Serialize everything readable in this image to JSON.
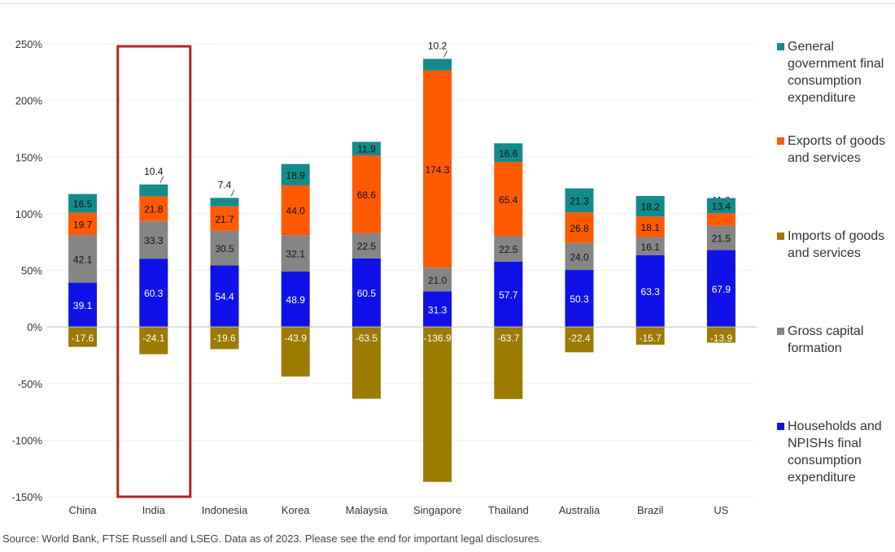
{
  "chart_data": {
    "type": "bar",
    "stacked": true,
    "categories": [
      "China",
      "India",
      "Indonesia",
      "Korea",
      "Malaysia",
      "Singapore",
      "Thailand",
      "Australia",
      "Brazil",
      "US"
    ],
    "ylim": [
      -150,
      250
    ],
    "yticks": [
      "250%",
      "200%",
      "150%",
      "100%",
      "50%",
      "0%",
      "-50%",
      "-100%",
      "-150%"
    ],
    "ytick_values": [
      250,
      200,
      150,
      100,
      50,
      0,
      -50,
      -100,
      -150
    ],
    "grid": true,
    "legend_position": "right",
    "highlight_category": "India",
    "series": [
      {
        "name": "Households and NPISHs final consumption expenditure",
        "color": "#1010e8",
        "text_color": "#ffffff",
        "values": [
          39.1,
          60.3,
          54.4,
          48.9,
          60.5,
          31.3,
          57.7,
          50.3,
          63.3,
          67.9
        ],
        "labels": [
          "39.1",
          "60.3",
          "54.4",
          "48.9",
          "60.5",
          "31.3",
          "57.7",
          "50.3",
          "63.3",
          "67.9"
        ]
      },
      {
        "name": "Gross capital formation",
        "color": "#858585",
        "text_color": "#111111",
        "values": [
          42.1,
          33.3,
          30.5,
          32.1,
          22.5,
          21.0,
          22.5,
          24.0,
          16.1,
          21.5
        ],
        "labels": [
          "42.1",
          "33.3",
          "30.5",
          "32.1",
          "22.5",
          "21.0",
          "22.5",
          "24.0",
          "16.1",
          "21.5"
        ]
      },
      {
        "name": "Exports of goods and services",
        "color": "#ff5a00",
        "text_color": "#111111",
        "values": [
          19.7,
          21.8,
          21.7,
          44.0,
          68.6,
          174.3,
          65.4,
          26.8,
          18.1,
          11.0
        ],
        "labels": [
          "19.7",
          "21.8",
          "21.7",
          "44.0",
          "68.6",
          "174.3",
          "65.4",
          "26.8",
          "18.1",
          "11.0"
        ]
      },
      {
        "name": "General government final consumption expenditure",
        "color": "#138b8b",
        "text_color": "#111111",
        "values": [
          16.5,
          10.4,
          7.4,
          18.9,
          11.9,
          10.2,
          16.6,
          21.3,
          18.2,
          13.4
        ],
        "labels": [
          "16.5",
          "10.4",
          "7.4",
          "18.9",
          "11.9",
          "10.2",
          "16.6",
          "21.3",
          "18.2",
          "13.4"
        ]
      },
      {
        "name": "Imports of goods and services",
        "color": "#9c7b00",
        "text_color": "#ffffff",
        "values": [
          -17.6,
          -24.1,
          -19.6,
          -43.9,
          -63.5,
          -136.9,
          -63.7,
          -22.4,
          -15.7,
          -13.9
        ],
        "labels": [
          "-17.6",
          "-24.1",
          "-19.6",
          "-43.9",
          "-63.5",
          "-136.9",
          "-63.7",
          "-22.4",
          "-15.7",
          "-13.9"
        ]
      }
    ]
  },
  "legend": [
    {
      "label": "General government final consumption expenditure",
      "color": "#138b8b"
    },
    {
      "label": "Exports of goods and services",
      "color": "#ff5a00"
    },
    {
      "label": "Imports of goods and services",
      "color": "#9c7b00"
    },
    {
      "label": "Gross capital formation",
      "color": "#858585"
    },
    {
      "label": "Households and NPISHs final consumption expenditure",
      "color": "#1010e8"
    }
  ],
  "highlight_color": "#b22222",
  "source": "Source: World Bank, FTSE Russell and LSEG. Data as of 2023. Please see the end for important legal disclosures."
}
